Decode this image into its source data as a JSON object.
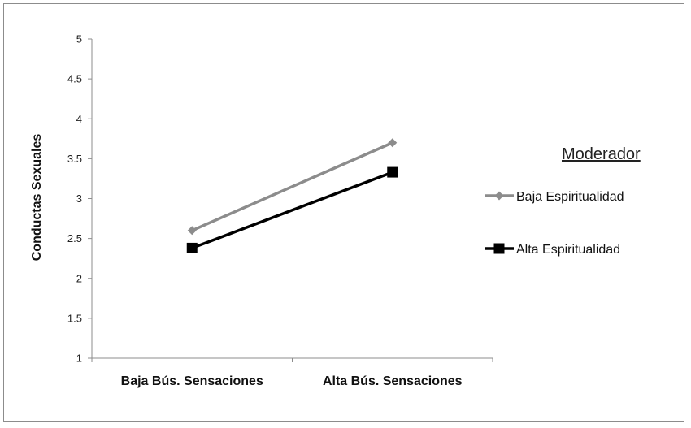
{
  "chart_data": {
    "type": "line",
    "categories": [
      "Baja Bús. Sensaciones",
      "Alta Bús. Sensaciones"
    ],
    "series": [
      {
        "name": "Baja Espiritualidad",
        "values": [
          2.6,
          3.7
        ],
        "color": "#8c8c8c",
        "marker": "diamond"
      },
      {
        "name": "Alta Espiritualidad",
        "values": [
          2.38,
          3.33
        ],
        "color": "#000000",
        "marker": "square"
      }
    ],
    "ylabel": "Conductas Sexuales",
    "xlabel": "",
    "ylim": [
      1,
      5
    ],
    "yticks": [
      "1",
      "1.5",
      "2",
      "2.5",
      "3",
      "3.5",
      "4",
      "4.5",
      "5"
    ],
    "grid": false,
    "legend": {
      "title": "Moderador",
      "position": "right"
    }
  }
}
